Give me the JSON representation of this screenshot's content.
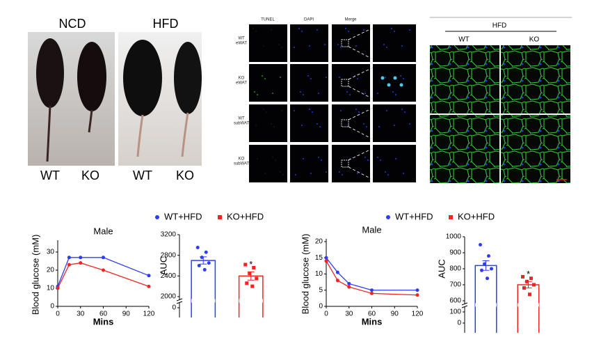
{
  "panels": {
    "photos": {
      "groups": [
        "NCD",
        "HFD"
      ],
      "genotypes": [
        "WT",
        "KO",
        "WT",
        "KO"
      ]
    },
    "tunel": {
      "columns": [
        "TUNEL",
        "DAPI",
        "Merge"
      ],
      "rows": [
        [
          "WT",
          "eWAT"
        ],
        [
          "KO",
          "eWAT"
        ],
        [
          "WT",
          "subWAT"
        ],
        [
          "KO",
          "subWAT"
        ]
      ]
    },
    "histology": {
      "title": "HFD",
      "columns": [
        "WT",
        "KO"
      ]
    }
  },
  "chart_data": [
    {
      "type": "line",
      "title": "Male",
      "ylabel": "Blood glucose (mM)",
      "xlabel": "Mins",
      "x": [
        0,
        15,
        30,
        60,
        120
      ],
      "xlim": [
        0,
        120
      ],
      "xticks": [
        0,
        30,
        60,
        90,
        120
      ],
      "ylim": [
        0,
        35
      ],
      "yticks": [
        0,
        10,
        20,
        30
      ],
      "series": [
        {
          "color": "#2e3cf5",
          "values": [
            11,
            27,
            27,
            27,
            17
          ]
        },
        {
          "color": "#f52222",
          "values": [
            10,
            23,
            24,
            20,
            11
          ]
        }
      ]
    },
    {
      "type": "bar",
      "ylabel": "AUC",
      "annotation": "*",
      "axis_break": true,
      "ylim": [
        2000,
        3200
      ],
      "yticks": [
        0,
        2000,
        2400,
        2800,
        3200
      ],
      "series": [
        {
          "name": "WT+HFD",
          "color": "#2e3cf5",
          "marker": "circle",
          "value": 2700,
          "error": 70,
          "points": [
            2950,
            2860,
            2760,
            2650,
            2600,
            2520
          ]
        },
        {
          "name": "KO+HFD",
          "color": "#f52222",
          "marker": "square",
          "value": 2400,
          "error": 80,
          "points": [
            2620,
            2560,
            2450,
            2350,
            2260,
            2200
          ]
        }
      ]
    },
    {
      "type": "line",
      "title": "Male",
      "ylabel": "Blood glucose (mM)",
      "xlabel": "Mins",
      "x": [
        0,
        15,
        30,
        60,
        120
      ],
      "xlim": [
        0,
        120
      ],
      "xticks": [
        0,
        30,
        60,
        90,
        120
      ],
      "ylim": [
        0,
        20
      ],
      "yticks": [
        0,
        5,
        10,
        15,
        20
      ],
      "series": [
        {
          "color": "#2e3cf5",
          "values": [
            15,
            10.5,
            7,
            5,
            5
          ]
        },
        {
          "color": "#f52222",
          "values": [
            14,
            8,
            6,
            4,
            3.5
          ]
        }
      ]
    },
    {
      "type": "bar",
      "ylabel": "AUC",
      "annotation": "*",
      "axis_break": true,
      "ylim": [
        600,
        1000
      ],
      "yticks": [
        0,
        100,
        600,
        700,
        800,
        900,
        1000
      ],
      "series": [
        {
          "name": "WT+HFD",
          "color": "#2e3cf5",
          "marker": "circle",
          "value": 820,
          "error": 30,
          "points": [
            950,
            880,
            830,
            800,
            790,
            740
          ]
        },
        {
          "name": "KO+HFD",
          "color": "#f52222",
          "marker": "square",
          "value": 700,
          "error": 20,
          "points": [
            750,
            740,
            720,
            700,
            680,
            640
          ]
        }
      ]
    }
  ]
}
